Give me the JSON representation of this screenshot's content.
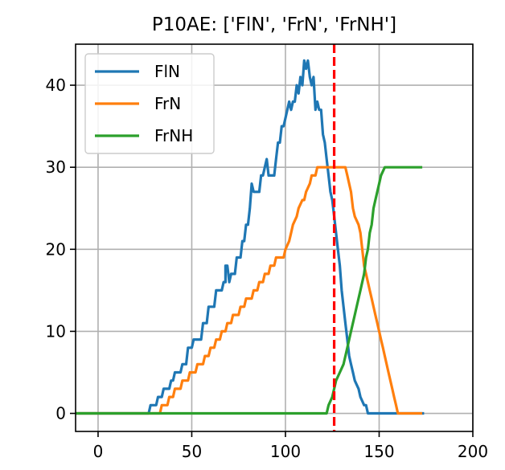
{
  "chart_data": {
    "type": "line",
    "title": "P10AE: ['FlN', 'FrN', 'FrNH']",
    "xlabel": "",
    "ylabel": "",
    "xlim": [
      -12,
      200
    ],
    "ylim": [
      -2.2,
      45
    ],
    "xticks": [
      0,
      50,
      100,
      150,
      200
    ],
    "yticks": [
      0,
      10,
      20,
      30,
      40
    ],
    "grid": true,
    "legend_position": "top-left",
    "vline": {
      "x": 126,
      "color": "#ff0000",
      "style": "dashed"
    },
    "series": [
      {
        "name": "FlN",
        "color": "#1f77b4",
        "points": [
          [
            -12,
            0
          ],
          [
            27,
            0
          ],
          [
            28,
            1
          ],
          [
            31,
            1
          ],
          [
            32,
            2
          ],
          [
            34,
            2
          ],
          [
            35,
            3
          ],
          [
            38,
            3
          ],
          [
            39,
            4
          ],
          [
            40,
            4
          ],
          [
            41,
            5
          ],
          [
            44,
            5
          ],
          [
            45,
            6
          ],
          [
            47,
            6
          ],
          [
            48,
            8
          ],
          [
            50,
            8
          ],
          [
            51,
            9
          ],
          [
            55,
            9
          ],
          [
            56,
            11
          ],
          [
            58,
            11
          ],
          [
            59,
            13
          ],
          [
            62,
            13
          ],
          [
            63,
            15
          ],
          [
            66,
            15
          ],
          [
            67,
            16
          ],
          [
            68,
            16
          ],
          [
            68,
            18
          ],
          [
            69,
            18
          ],
          [
            70,
            16
          ],
          [
            71,
            17
          ],
          [
            73,
            17
          ],
          [
            74,
            19
          ],
          [
            76,
            19
          ],
          [
            77,
            21
          ],
          [
            78,
            21
          ],
          [
            79,
            23
          ],
          [
            80,
            23
          ],
          [
            81,
            25
          ],
          [
            82,
            28
          ],
          [
            83,
            27
          ],
          [
            86,
            27
          ],
          [
            87,
            29
          ],
          [
            88,
            29
          ],
          [
            89,
            30
          ],
          [
            90,
            31
          ],
          [
            91,
            29
          ],
          [
            94,
            29
          ],
          [
            95,
            31
          ],
          [
            96,
            33
          ],
          [
            97,
            33
          ],
          [
            98,
            35
          ],
          [
            99,
            35
          ],
          [
            100,
            36
          ],
          [
            102,
            38
          ],
          [
            103,
            37
          ],
          [
            104,
            38
          ],
          [
            105,
            38
          ],
          [
            106,
            40
          ],
          [
            107,
            39
          ],
          [
            108,
            41
          ],
          [
            109,
            40
          ],
          [
            110,
            43
          ],
          [
            111,
            42
          ],
          [
            112,
            43
          ],
          [
            113,
            41
          ],
          [
            114,
            40
          ],
          [
            115,
            41
          ],
          [
            116,
            37
          ],
          [
            117,
            38
          ],
          [
            118,
            37
          ],
          [
            119,
            37
          ],
          [
            120,
            34
          ],
          [
            121,
            33
          ],
          [
            122,
            31
          ],
          [
            123,
            29
          ],
          [
            124,
            27
          ],
          [
            125,
            26
          ],
          [
            126,
            24
          ],
          [
            127,
            22
          ],
          [
            128,
            20
          ],
          [
            129,
            18
          ],
          [
            130,
            15
          ],
          [
            131,
            13
          ],
          [
            132,
            11
          ],
          [
            133,
            9
          ],
          [
            134,
            7
          ],
          [
            135,
            6
          ],
          [
            136,
            5
          ],
          [
            137,
            4
          ],
          [
            139,
            3
          ],
          [
            140,
            2
          ],
          [
            142,
            1
          ],
          [
            143,
            1
          ],
          [
            144,
            0
          ],
          [
            174,
            0
          ]
        ]
      },
      {
        "name": "FrN",
        "color": "#ff7f0e",
        "points": [
          [
            -12,
            0
          ],
          [
            33,
            0
          ],
          [
            34,
            1
          ],
          [
            37,
            1
          ],
          [
            38,
            2
          ],
          [
            40,
            2
          ],
          [
            41,
            3
          ],
          [
            44,
            3
          ],
          [
            45,
            4
          ],
          [
            48,
            4
          ],
          [
            49,
            5
          ],
          [
            52,
            5
          ],
          [
            53,
            6
          ],
          [
            56,
            6
          ],
          [
            57,
            7
          ],
          [
            59,
            7
          ],
          [
            60,
            8
          ],
          [
            62,
            8
          ],
          [
            63,
            9
          ],
          [
            65,
            9
          ],
          [
            66,
            10
          ],
          [
            68,
            10
          ],
          [
            69,
            11
          ],
          [
            71,
            11
          ],
          [
            72,
            12
          ],
          [
            75,
            12
          ],
          [
            76,
            13
          ],
          [
            78,
            13
          ],
          [
            79,
            14
          ],
          [
            82,
            14
          ],
          [
            83,
            15
          ],
          [
            85,
            15
          ],
          [
            86,
            16
          ],
          [
            88,
            16
          ],
          [
            89,
            17
          ],
          [
            91,
            17
          ],
          [
            92,
            18
          ],
          [
            94,
            18
          ],
          [
            95,
            19
          ],
          [
            99,
            19
          ],
          [
            100,
            20
          ],
          [
            102,
            21
          ],
          [
            103,
            22
          ],
          [
            104,
            23
          ],
          [
            106,
            24
          ],
          [
            107,
            25
          ],
          [
            109,
            26
          ],
          [
            110,
            26
          ],
          [
            111,
            27
          ],
          [
            113,
            28
          ],
          [
            114,
            29
          ],
          [
            116,
            29
          ],
          [
            117,
            30
          ],
          [
            131,
            30
          ],
          [
            132,
            30
          ],
          [
            133,
            29
          ],
          [
            134,
            28
          ],
          [
            135,
            27
          ],
          [
            136,
            25
          ],
          [
            137,
            24
          ],
          [
            139,
            23
          ],
          [
            140,
            22
          ],
          [
            141,
            20
          ],
          [
            142,
            18
          ],
          [
            143,
            17
          ],
          [
            144,
            16
          ],
          [
            145,
            15
          ],
          [
            146,
            14
          ],
          [
            147,
            13
          ],
          [
            148,
            12
          ],
          [
            149,
            11
          ],
          [
            150,
            10
          ],
          [
            151,
            9
          ],
          [
            152,
            8
          ],
          [
            153,
            7
          ],
          [
            154,
            6
          ],
          [
            155,
            5
          ],
          [
            157,
            3
          ],
          [
            158,
            2
          ],
          [
            159,
            1
          ],
          [
            160,
            0
          ],
          [
            173,
            0
          ]
        ]
      },
      {
        "name": "FrNH",
        "color": "#2ca02c",
        "points": [
          [
            -12,
            0
          ],
          [
            122,
            0
          ],
          [
            123,
            1
          ],
          [
            125,
            2
          ],
          [
            127,
            4
          ],
          [
            129,
            5
          ],
          [
            131,
            6
          ],
          [
            133,
            8
          ],
          [
            135,
            10
          ],
          [
            137,
            12
          ],
          [
            138,
            13
          ],
          [
            140,
            15
          ],
          [
            142,
            17
          ],
          [
            143,
            19
          ],
          [
            144,
            20
          ],
          [
            145,
            22
          ],
          [
            146,
            23
          ],
          [
            147,
            25
          ],
          [
            148,
            26
          ],
          [
            150,
            28
          ],
          [
            151,
            29
          ],
          [
            153,
            30
          ],
          [
            173,
            30
          ]
        ]
      }
    ]
  }
}
